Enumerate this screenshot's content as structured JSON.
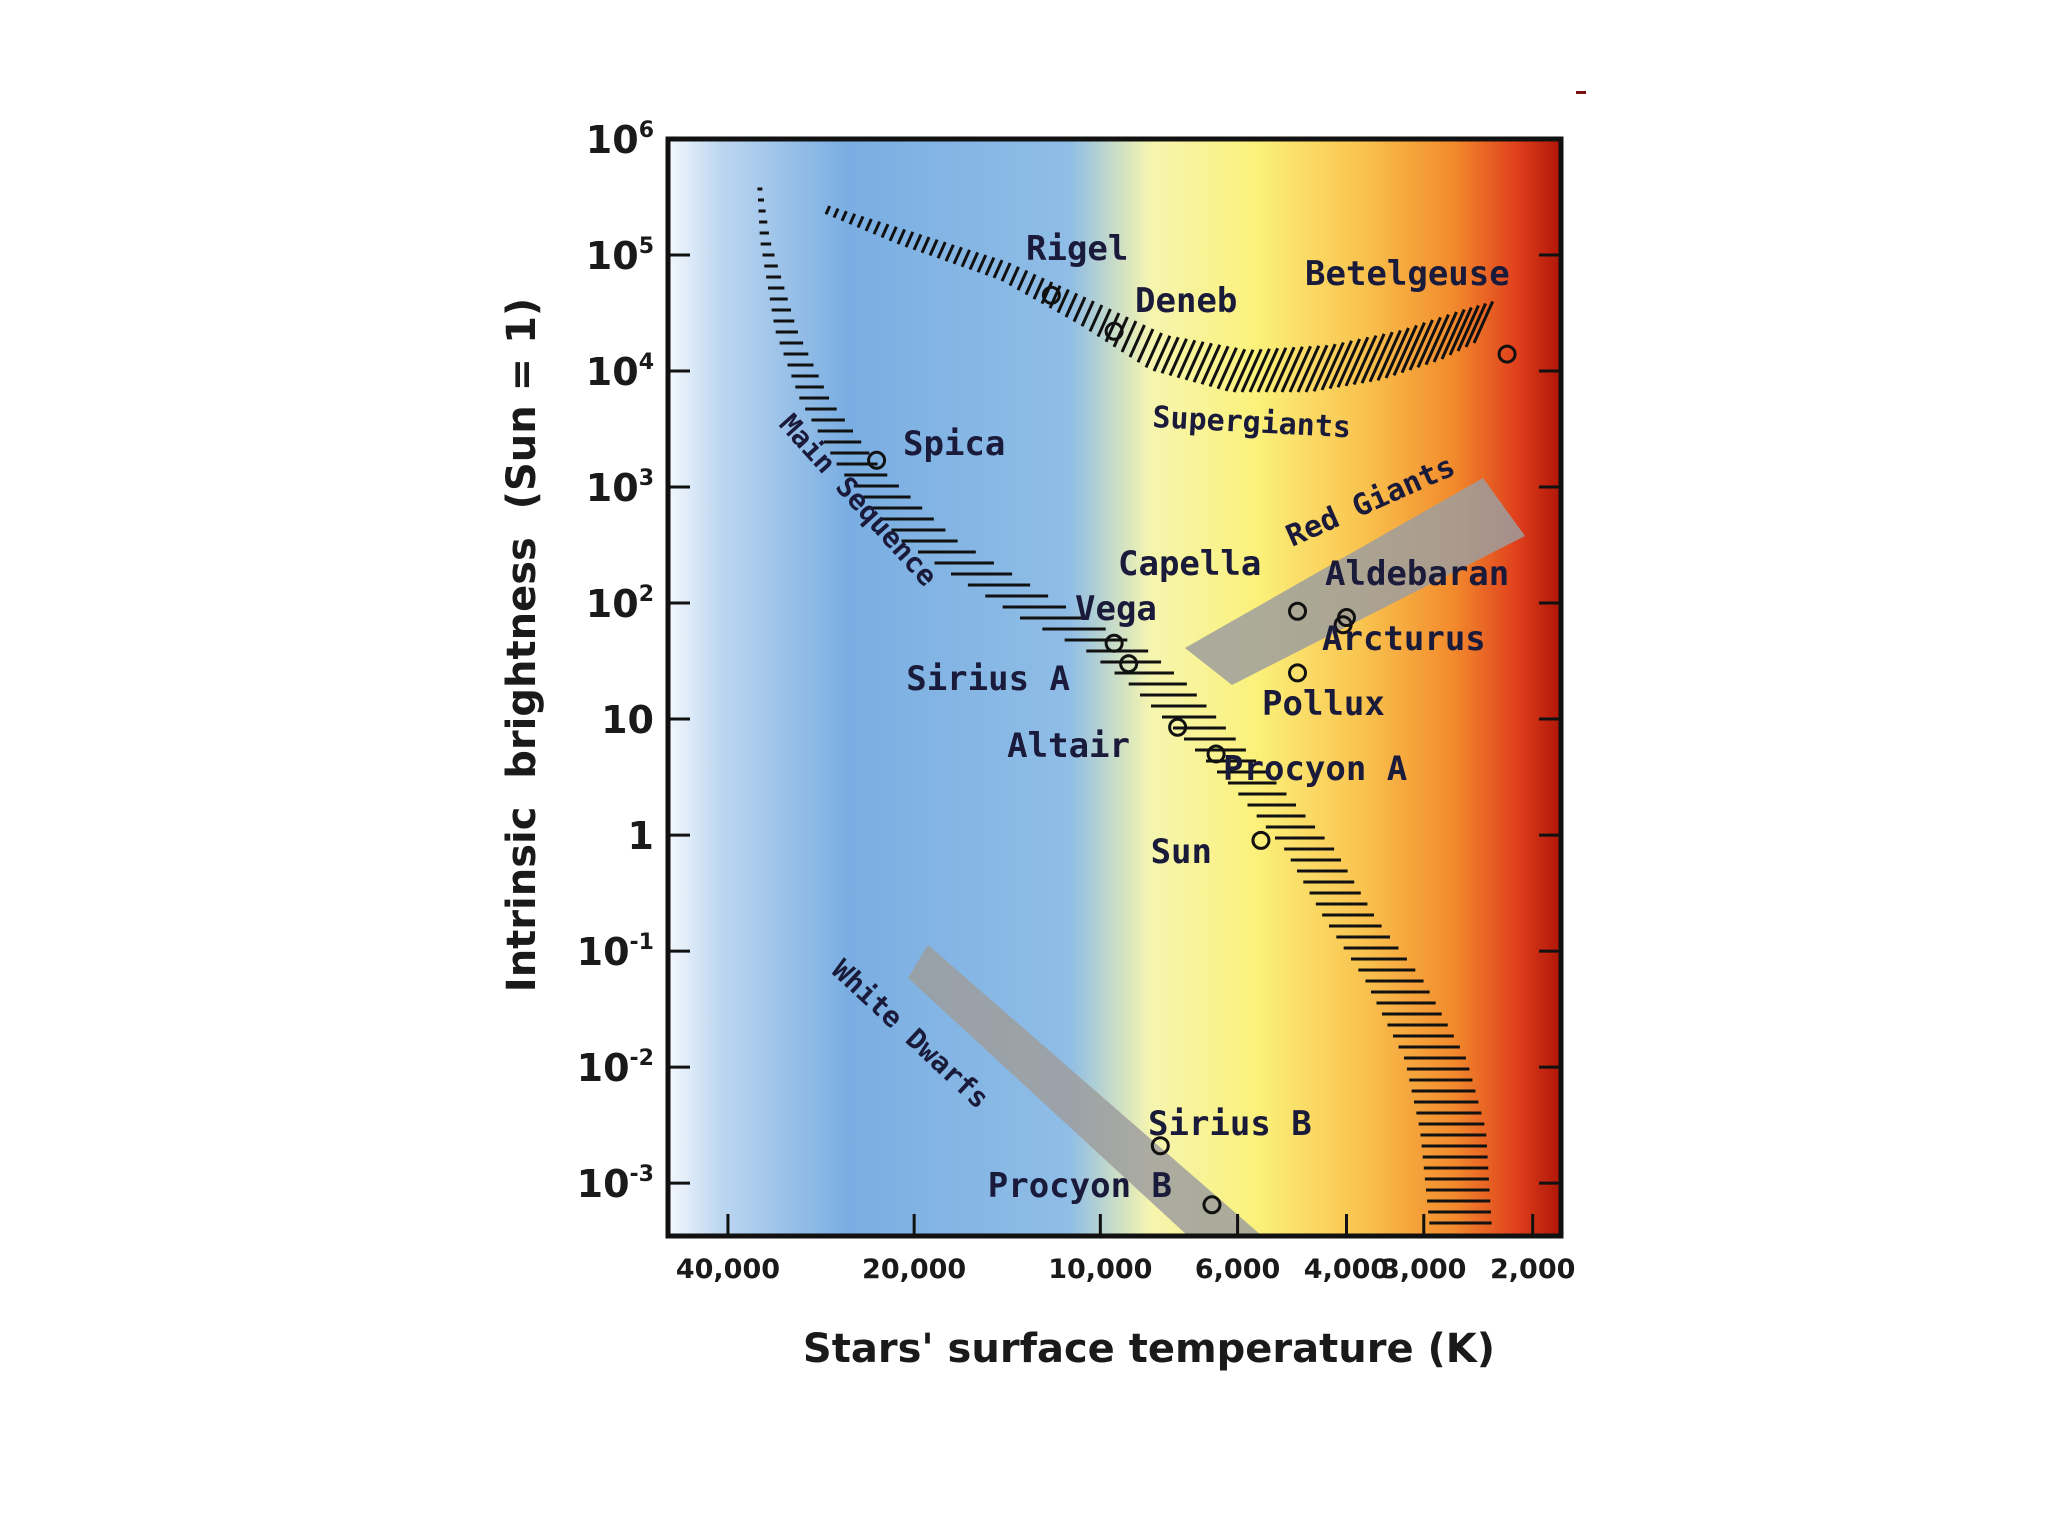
{
  "chart_data": {
    "type": "scatter",
    "title": "",
    "xlabel": "Stars' surface temperature (K)",
    "ylabel": "Intrinsic  brightness  (Sun = 1)",
    "x_scale": "log",
    "x_reversed": true,
    "y_scale": "log",
    "xlim": [
      50000,
      1800
    ],
    "ylim": [
      0.00035,
      1000000
    ],
    "x_ticks": [
      {
        "value": 40000,
        "label": "40,000"
      },
      {
        "value": 20000,
        "label": "20,000"
      },
      {
        "value": 10000,
        "label": "10,000"
      },
      {
        "value": 6000,
        "label": "6,000"
      },
      {
        "value": 4000,
        "label": "4,000"
      },
      {
        "value": 3000,
        "label": "3,000"
      },
      {
        "value": 2000,
        "label": "2,000"
      }
    ],
    "y_ticks": [
      {
        "value": 1000000,
        "base": "10",
        "exp": "6"
      },
      {
        "value": 100000,
        "base": "10",
        "exp": "5"
      },
      {
        "value": 10000,
        "base": "10",
        "exp": "4"
      },
      {
        "value": 1000,
        "base": "10",
        "exp": "3"
      },
      {
        "value": 100,
        "base": "10",
        "exp": "2"
      },
      {
        "value": 10,
        "base": "10",
        "exp": ""
      },
      {
        "value": 1,
        "base": "1",
        "exp": ""
      },
      {
        "value": 0.1,
        "base": "10",
        "exp": "-1"
      },
      {
        "value": 0.01,
        "base": "10",
        "exp": "-2"
      },
      {
        "value": 0.001,
        "base": "10",
        "exp": "-3"
      }
    ],
    "background_gradient": [
      "#f4f8fd",
      "#bcd6f0",
      "#7aaee2",
      "#8fbde6",
      "#f6f5b0",
      "#fbf17a",
      "#f9c24e",
      "#f28a2c",
      "#e0401c",
      "#b01508"
    ],
    "stars": [
      {
        "name": "Rigel",
        "temperature": 12000,
        "brightness": 45000
      },
      {
        "name": "Deneb",
        "temperature": 9500,
        "brightness": 22000
      },
      {
        "name": "Betelgeuse",
        "temperature": 2200,
        "brightness": 14000
      },
      {
        "name": "Spica",
        "temperature": 23000,
        "brightness": 1700
      },
      {
        "name": "Capella",
        "temperature": 4800,
        "brightness": 85
      },
      {
        "name": "Aldebaran",
        "temperature": 4000,
        "brightness": 75
      },
      {
        "name": "Arcturus",
        "temperature": 4050,
        "brightness": 65
      },
      {
        "name": "Vega",
        "temperature": 9500,
        "brightness": 45
      },
      {
        "name": "Sirius A",
        "temperature": 9000,
        "brightness": 30
      },
      {
        "name": "Pollux",
        "temperature": 4800,
        "brightness": 25
      },
      {
        "name": "Altair",
        "temperature": 7500,
        "brightness": 8.5
      },
      {
        "name": "Procyon A",
        "temperature": 6500,
        "brightness": 5
      },
      {
        "name": "Sun",
        "temperature": 5500,
        "brightness": 0.9
      },
      {
        "name": "Sirius B",
        "temperature": 8000,
        "brightness": 0.0021
      },
      {
        "name": "Procyon B",
        "temperature": 6600,
        "brightness": 0.00065
      }
    ],
    "regions": [
      {
        "name": "Main Sequence",
        "kind": "hatched-band"
      },
      {
        "name": "Supergiants",
        "kind": "hatched-band"
      },
      {
        "name": "Red Giants",
        "kind": "gray-band"
      },
      {
        "name": "White Dwarfs",
        "kind": "gray-band"
      }
    ]
  }
}
